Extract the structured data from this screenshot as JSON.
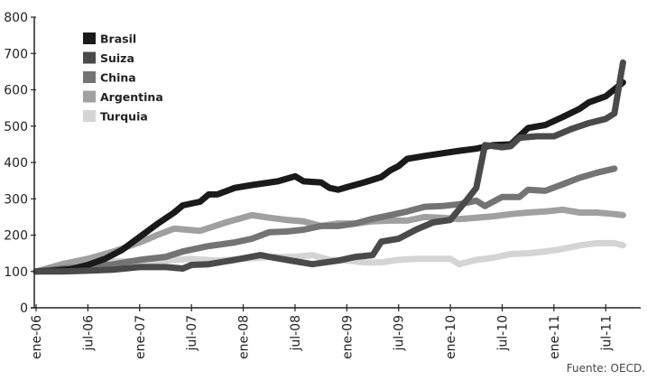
{
  "chart_data": {
    "type": "line",
    "title": "",
    "xlabel": "",
    "ylabel": "",
    "ylim": [
      0,
      800
    ],
    "yticks": [
      0,
      100,
      200,
      300,
      400,
      500,
      600,
      700,
      800
    ],
    "grid": false,
    "legend_position": "top-left",
    "x_range": [
      "2006-01",
      "2011-10"
    ],
    "xticks": [
      {
        "label": "ene-06",
        "date": "2006-01"
      },
      {
        "label": "jul-06",
        "date": "2006-07"
      },
      {
        "label": "ene-07",
        "date": "2007-01"
      },
      {
        "label": "jul-07",
        "date": "2007-07"
      },
      {
        "label": "ene-08",
        "date": "2008-01"
      },
      {
        "label": "jul-08",
        "date": "2008-07"
      },
      {
        "label": "ene-09",
        "date": "2009-01"
      },
      {
        "label": "jul-09",
        "date": "2009-07"
      },
      {
        "label": "ene-10",
        "date": "2010-01"
      },
      {
        "label": "jul-10",
        "date": "2010-07"
      },
      {
        "label": "ene-11",
        "date": "2011-01"
      },
      {
        "label": "jul-11",
        "date": "2011-07"
      }
    ],
    "series": [
      {
        "name": "Brasil",
        "color": "#1a1a1a",
        "points": [
          [
            "2006-01",
            100
          ],
          [
            "2006-03",
            102
          ],
          [
            "2006-05",
            106
          ],
          [
            "2006-07",
            118
          ],
          [
            "2006-09",
            135
          ],
          [
            "2006-11",
            160
          ],
          [
            "2007-01",
            195
          ],
          [
            "2007-03",
            230
          ],
          [
            "2007-05",
            262
          ],
          [
            "2007-06",
            282
          ],
          [
            "2007-08",
            292
          ],
          [
            "2007-09",
            312
          ],
          [
            "2007-10",
            312
          ],
          [
            "2007-12",
            330
          ],
          [
            "2008-02",
            338
          ],
          [
            "2008-05",
            348
          ],
          [
            "2008-06",
            355
          ],
          [
            "2008-07",
            362
          ],
          [
            "2008-08",
            348
          ],
          [
            "2008-10",
            345
          ],
          [
            "2008-11",
            330
          ],
          [
            "2008-12",
            325
          ],
          [
            "2009-01",
            332
          ],
          [
            "2009-03",
            345
          ],
          [
            "2009-05",
            360
          ],
          [
            "2009-06",
            378
          ],
          [
            "2009-07",
            390
          ],
          [
            "2009-08",
            410
          ],
          [
            "2009-10",
            418
          ],
          [
            "2009-12",
            425
          ],
          [
            "2010-02",
            432
          ],
          [
            "2010-04",
            438
          ],
          [
            "2010-06",
            448
          ],
          [
            "2010-08",
            450
          ],
          [
            "2010-10",
            495
          ],
          [
            "2010-12",
            503
          ],
          [
            "2011-02",
            525
          ],
          [
            "2011-04",
            548
          ],
          [
            "2011-05",
            565
          ],
          [
            "2011-07",
            582
          ],
          [
            "2011-09",
            620
          ]
        ]
      },
      {
        "name": "Suiza",
        "color": "#4a4a4a",
        "points": [
          [
            "2006-01",
            100
          ],
          [
            "2006-04",
            100
          ],
          [
            "2006-07",
            102
          ],
          [
            "2006-10",
            105
          ],
          [
            "2007-01",
            112
          ],
          [
            "2007-04",
            112
          ],
          [
            "2007-06",
            108
          ],
          [
            "2007-07",
            118
          ],
          [
            "2007-09",
            120
          ],
          [
            "2007-12",
            132
          ],
          [
            "2008-03",
            145
          ],
          [
            "2008-04",
            140
          ],
          [
            "2008-07",
            128
          ],
          [
            "2008-09",
            120
          ],
          [
            "2008-12",
            130
          ],
          [
            "2009-02",
            140
          ],
          [
            "2009-04",
            145
          ],
          [
            "2009-05",
            182
          ],
          [
            "2009-07",
            190
          ],
          [
            "2009-09",
            215
          ],
          [
            "2009-11",
            235
          ],
          [
            "2010-01",
            242
          ],
          [
            "2010-03",
            300
          ],
          [
            "2010-04",
            330
          ],
          [
            "2010-05",
            448
          ],
          [
            "2010-07",
            442
          ],
          [
            "2010-08",
            445
          ],
          [
            "2010-09",
            468
          ],
          [
            "2010-11",
            472
          ],
          [
            "2011-01",
            472
          ],
          [
            "2011-03",
            492
          ],
          [
            "2011-05",
            508
          ],
          [
            "2011-07",
            520
          ],
          [
            "2011-08",
            535
          ],
          [
            "2011-09",
            675
          ]
        ]
      },
      {
        "name": "China",
        "color": "#747474",
        "points": [
          [
            "2006-01",
            100
          ],
          [
            "2006-04",
            108
          ],
          [
            "2006-07",
            112
          ],
          [
            "2006-10",
            120
          ],
          [
            "2007-01",
            132
          ],
          [
            "2007-04",
            140
          ],
          [
            "2007-06",
            155
          ],
          [
            "2007-07",
            160
          ],
          [
            "2007-09",
            170
          ],
          [
            "2007-12",
            180
          ],
          [
            "2008-02",
            190
          ],
          [
            "2008-04",
            208
          ],
          [
            "2008-06",
            210
          ],
          [
            "2008-08",
            215
          ],
          [
            "2008-10",
            225
          ],
          [
            "2008-12",
            225
          ],
          [
            "2009-02",
            232
          ],
          [
            "2009-04",
            245
          ],
          [
            "2009-06",
            255
          ],
          [
            "2009-08",
            265
          ],
          [
            "2009-10",
            278
          ],
          [
            "2009-12",
            280
          ],
          [
            "2010-02",
            285
          ],
          [
            "2010-04",
            295
          ],
          [
            "2010-05",
            280
          ],
          [
            "2010-07",
            305
          ],
          [
            "2010-09",
            305
          ],
          [
            "2010-10",
            325
          ],
          [
            "2010-12",
            322
          ],
          [
            "2011-02",
            340
          ],
          [
            "2011-04",
            358
          ],
          [
            "2011-06",
            372
          ],
          [
            "2011-08",
            383
          ]
        ]
      },
      {
        "name": "Argentina",
        "color": "#a0a0a0",
        "points": [
          [
            "2006-01",
            100
          ],
          [
            "2006-04",
            120
          ],
          [
            "2006-07",
            135
          ],
          [
            "2006-10",
            155
          ],
          [
            "2007-01",
            180
          ],
          [
            "2007-03",
            200
          ],
          [
            "2007-05",
            218
          ],
          [
            "2007-08",
            212
          ],
          [
            "2007-11",
            235
          ],
          [
            "2008-02",
            255
          ],
          [
            "2008-04",
            248
          ],
          [
            "2008-06",
            242
          ],
          [
            "2008-08",
            238
          ],
          [
            "2008-10",
            225
          ],
          [
            "2008-12",
            232
          ],
          [
            "2009-02",
            232
          ],
          [
            "2009-04",
            238
          ],
          [
            "2009-06",
            240
          ],
          [
            "2009-08",
            240
          ],
          [
            "2009-10",
            250
          ],
          [
            "2009-12",
            248
          ],
          [
            "2010-02",
            244
          ],
          [
            "2010-04",
            248
          ],
          [
            "2010-06",
            252
          ],
          [
            "2010-08",
            258
          ],
          [
            "2010-10",
            262
          ],
          [
            "2010-12",
            265
          ],
          [
            "2011-02",
            270
          ],
          [
            "2011-04",
            262
          ],
          [
            "2011-06",
            262
          ],
          [
            "2011-08",
            258
          ],
          [
            "2011-09",
            255
          ]
        ]
      },
      {
        "name": "Turquia",
        "color": "#d4d4d4",
        "points": [
          [
            "2006-01",
            100
          ],
          [
            "2006-04",
            115
          ],
          [
            "2006-07",
            122
          ],
          [
            "2006-10",
            128
          ],
          [
            "2007-01",
            128
          ],
          [
            "2007-04",
            130
          ],
          [
            "2007-07",
            135
          ],
          [
            "2007-10",
            130
          ],
          [
            "2008-01",
            135
          ],
          [
            "2008-04",
            140
          ],
          [
            "2008-07",
            140
          ],
          [
            "2008-09",
            145
          ],
          [
            "2008-11",
            132
          ],
          [
            "2009-01",
            130
          ],
          [
            "2009-03",
            125
          ],
          [
            "2009-05",
            125
          ],
          [
            "2009-07",
            132
          ],
          [
            "2009-09",
            135
          ],
          [
            "2009-11",
            135
          ],
          [
            "2010-01",
            135
          ],
          [
            "2010-02",
            120
          ],
          [
            "2010-04",
            132
          ],
          [
            "2010-06",
            138
          ],
          [
            "2010-08",
            148
          ],
          [
            "2010-10",
            150
          ],
          [
            "2010-12",
            155
          ],
          [
            "2011-02",
            162
          ],
          [
            "2011-04",
            172
          ],
          [
            "2011-06",
            178
          ],
          [
            "2011-08",
            178
          ],
          [
            "2011-09",
            172
          ]
        ]
      }
    ],
    "source": "Fuente: OECD."
  }
}
